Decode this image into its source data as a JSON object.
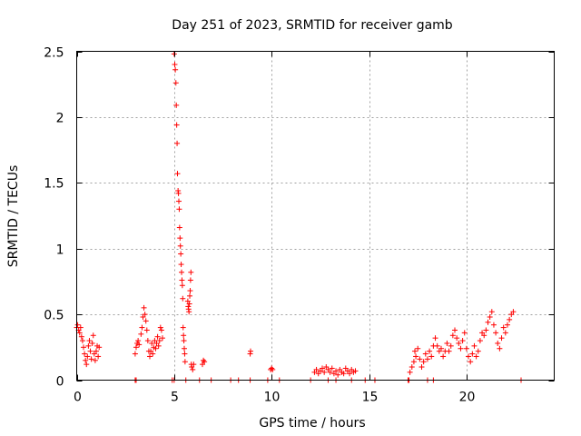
{
  "chart_data": {
    "type": "scatter",
    "title": "Day 251 of 2023, SRMTID for receiver gamb",
    "xlabel": "GPS time / hours",
    "ylabel": "SRMTID / TECUs",
    "xlim": [
      0,
      24.5
    ],
    "ylim": [
      0,
      2.5
    ],
    "xticks": [
      0,
      5,
      10,
      15,
      20
    ],
    "xtick_labels": [
      "0",
      "5",
      "10",
      "15",
      "20"
    ],
    "yticks": [
      0,
      0.5,
      1,
      1.5,
      2,
      2.5
    ],
    "ytick_labels": [
      "0",
      "0.5",
      "1",
      "1.5",
      "2",
      "2.5"
    ],
    "grid": true,
    "marker": "+",
    "color": "#ff0000",
    "series": [
      {
        "name": "SRMTID",
        "points": [
          [
            0.0,
            0.4
          ],
          [
            0.05,
            0.42
          ],
          [
            0.1,
            0.38
          ],
          [
            0.15,
            0.36
          ],
          [
            0.2,
            0.4
          ],
          [
            0.25,
            0.33
          ],
          [
            0.3,
            0.3
          ],
          [
            0.35,
            0.25
          ],
          [
            0.4,
            0.2
          ],
          [
            0.45,
            0.15
          ],
          [
            0.5,
            0.12
          ],
          [
            0.55,
            0.18
          ],
          [
            0.6,
            0.26
          ],
          [
            0.65,
            0.3
          ],
          [
            0.7,
            0.22
          ],
          [
            0.75,
            0.16
          ],
          [
            0.8,
            0.28
          ],
          [
            0.85,
            0.34
          ],
          [
            0.9,
            0.2
          ],
          [
            0.95,
            0.15
          ],
          [
            1.0,
            0.22
          ],
          [
            1.05,
            0.26
          ],
          [
            1.1,
            0.18
          ],
          [
            1.15,
            0.25
          ],
          [
            3.0,
            0.2
          ],
          [
            3.05,
            0.25
          ],
          [
            3.1,
            0.28
          ],
          [
            3.15,
            0.3
          ],
          [
            3.2,
            0.27
          ],
          [
            3.3,
            0.35
          ],
          [
            3.35,
            0.4
          ],
          [
            3.4,
            0.48
          ],
          [
            3.45,
            0.55
          ],
          [
            3.5,
            0.5
          ],
          [
            3.55,
            0.45
          ],
          [
            3.6,
            0.38
          ],
          [
            3.65,
            0.3
          ],
          [
            3.7,
            0.22
          ],
          [
            3.75,
            0.18
          ],
          [
            3.8,
            0.22
          ],
          [
            3.85,
            0.28
          ],
          [
            3.9,
            0.2
          ],
          [
            3.95,
            0.25
          ],
          [
            4.0,
            0.3
          ],
          [
            4.05,
            0.24
          ],
          [
            4.1,
            0.28
          ],
          [
            4.15,
            0.33
          ],
          [
            4.2,
            0.26
          ],
          [
            4.25,
            0.3
          ],
          [
            4.3,
            0.4
          ],
          [
            4.35,
            0.38
          ],
          [
            4.4,
            0.32
          ],
          [
            5.0,
            2.48
          ],
          [
            5.03,
            2.4
          ],
          [
            5.06,
            2.36
          ],
          [
            5.09,
            2.26
          ],
          [
            5.11,
            2.09
          ],
          [
            5.13,
            1.94
          ],
          [
            5.15,
            1.8
          ],
          [
            5.17,
            1.57
          ],
          [
            5.2,
            1.44
          ],
          [
            5.22,
            1.42
          ],
          [
            5.24,
            1.36
          ],
          [
            5.26,
            1.3
          ],
          [
            5.28,
            1.16
          ],
          [
            5.3,
            1.08
          ],
          [
            5.32,
            1.02
          ],
          [
            5.34,
            0.96
          ],
          [
            5.36,
            0.88
          ],
          [
            5.38,
            0.82
          ],
          [
            5.4,
            0.76
          ],
          [
            5.42,
            0.72
          ],
          [
            5.44,
            0.62
          ],
          [
            5.46,
            0.4
          ],
          [
            5.48,
            0.34
          ],
          [
            5.5,
            0.3
          ],
          [
            5.52,
            0.24
          ],
          [
            5.54,
            0.2
          ],
          [
            5.56,
            0.14
          ],
          [
            5.7,
            0.6
          ],
          [
            5.72,
            0.56
          ],
          [
            5.74,
            0.54
          ],
          [
            5.76,
            0.52
          ],
          [
            5.78,
            0.58
          ],
          [
            5.8,
            0.64
          ],
          [
            5.82,
            0.68
          ],
          [
            5.84,
            0.76
          ],
          [
            5.86,
            0.82
          ],
          [
            5.88,
            0.12
          ],
          [
            5.9,
            0.1
          ],
          [
            5.95,
            0.08
          ],
          [
            6.0,
            0.12
          ],
          [
            6.45,
            0.12
          ],
          [
            6.5,
            0.15
          ],
          [
            6.55,
            0.14
          ],
          [
            8.9,
            0.2
          ],
          [
            8.92,
            0.22
          ],
          [
            9.95,
            0.08
          ],
          [
            10.0,
            0.09
          ],
          [
            10.05,
            0.08
          ],
          [
            12.2,
            0.06
          ],
          [
            12.3,
            0.08
          ],
          [
            12.4,
            0.05
          ],
          [
            12.5,
            0.07
          ],
          [
            12.6,
            0.09
          ],
          [
            12.7,
            0.06
          ],
          [
            12.8,
            0.1
          ],
          [
            12.9,
            0.08
          ],
          [
            13.0,
            0.06
          ],
          [
            13.1,
            0.09
          ],
          [
            13.2,
            0.05
          ],
          [
            13.3,
            0.07
          ],
          [
            13.4,
            0.04
          ],
          [
            13.5,
            0.08
          ],
          [
            13.6,
            0.06
          ],
          [
            13.7,
            0.05
          ],
          [
            13.8,
            0.09
          ],
          [
            13.9,
            0.07
          ],
          [
            14.0,
            0.05
          ],
          [
            14.1,
            0.08
          ],
          [
            14.2,
            0.06
          ],
          [
            14.3,
            0.07
          ],
          [
            17.1,
            0.06
          ],
          [
            17.2,
            0.1
          ],
          [
            17.3,
            0.14
          ],
          [
            17.35,
            0.22
          ],
          [
            17.4,
            0.18
          ],
          [
            17.5,
            0.24
          ],
          [
            17.6,
            0.16
          ],
          [
            17.7,
            0.1
          ],
          [
            17.8,
            0.14
          ],
          [
            17.9,
            0.2
          ],
          [
            18.0,
            0.16
          ],
          [
            18.1,
            0.22
          ],
          [
            18.2,
            0.18
          ],
          [
            18.3,
            0.26
          ],
          [
            18.4,
            0.32
          ],
          [
            18.5,
            0.26
          ],
          [
            18.6,
            0.22
          ],
          [
            18.7,
            0.24
          ],
          [
            18.8,
            0.18
          ],
          [
            18.9,
            0.22
          ],
          [
            19.0,
            0.28
          ],
          [
            19.1,
            0.22
          ],
          [
            19.2,
            0.26
          ],
          [
            19.3,
            0.34
          ],
          [
            19.4,
            0.38
          ],
          [
            19.5,
            0.32
          ],
          [
            19.6,
            0.28
          ],
          [
            19.7,
            0.24
          ],
          [
            19.8,
            0.3
          ],
          [
            19.9,
            0.36
          ],
          [
            20.0,
            0.24
          ],
          [
            20.1,
            0.18
          ],
          [
            20.2,
            0.14
          ],
          [
            20.3,
            0.2
          ],
          [
            20.4,
            0.26
          ],
          [
            20.5,
            0.18
          ],
          [
            20.6,
            0.22
          ],
          [
            20.7,
            0.3
          ],
          [
            20.8,
            0.36
          ],
          [
            20.9,
            0.34
          ],
          [
            21.0,
            0.38
          ],
          [
            21.1,
            0.44
          ],
          [
            21.2,
            0.48
          ],
          [
            21.3,
            0.52
          ],
          [
            21.4,
            0.42
          ],
          [
            21.5,
            0.36
          ],
          [
            21.6,
            0.28
          ],
          [
            21.7,
            0.24
          ],
          [
            21.8,
            0.32
          ],
          [
            21.9,
            0.4
          ],
          [
            22.0,
            0.36
          ],
          [
            22.1,
            0.42
          ],
          [
            22.2,
            0.46
          ],
          [
            22.3,
            0.5
          ],
          [
            22.4,
            0.52
          ]
        ]
      },
      {
        "name": "SRMTID-zero",
        "points": [
          [
            3.0,
            0
          ],
          [
            3.05,
            0
          ],
          [
            4.9,
            0
          ],
          [
            5.0,
            0
          ],
          [
            5.6,
            0
          ],
          [
            6.3,
            0
          ],
          [
            6.9,
            0
          ],
          [
            7.9,
            0
          ],
          [
            8.3,
            0
          ],
          [
            8.9,
            0
          ],
          [
            9.8,
            0
          ],
          [
            10.4,
            0
          ],
          [
            12.0,
            0
          ],
          [
            12.9,
            0
          ],
          [
            13.3,
            0
          ],
          [
            14.1,
            0
          ],
          [
            14.8,
            0
          ],
          [
            15.3,
            0
          ],
          [
            17.0,
            0
          ],
          [
            17.05,
            0
          ],
          [
            18.0,
            0
          ],
          [
            18.3,
            0
          ],
          [
            22.8,
            0
          ]
        ]
      }
    ]
  }
}
